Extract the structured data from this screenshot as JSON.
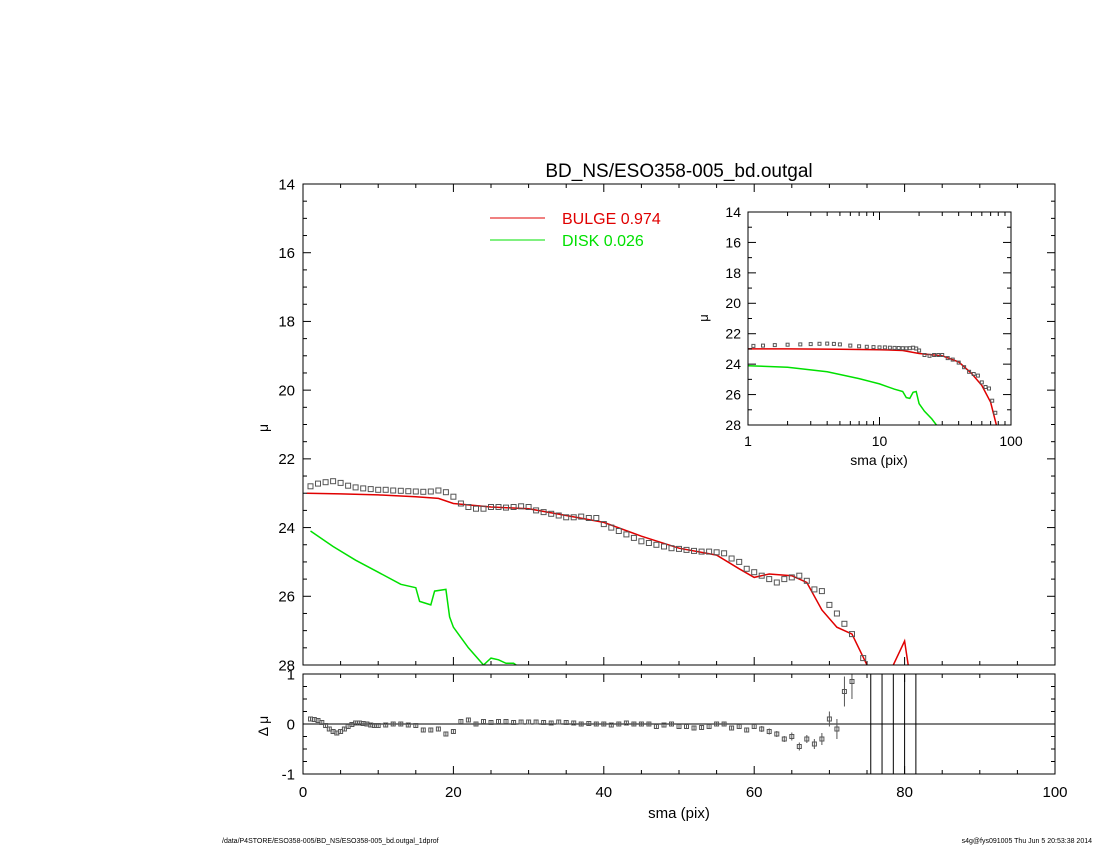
{
  "footer": {
    "path": "/data/P4STORE/ESO358-005/BD_NS/ESO358-005_bd.outgal_1dprof",
    "stamp": "s4g@fys091005  Thu Jun  5 20:53:38 2014"
  },
  "colors": {
    "bulge": "#e00000",
    "disk": "#00e000",
    "data": "#555555",
    "axis": "#000000"
  },
  "chart_data": [
    {
      "id": "main",
      "type": "line+scatter",
      "title": "BD_NS/ESO358-005_bd.outgal",
      "xlabel": "",
      "ylabel": "μ",
      "xlim": [
        0,
        100
      ],
      "ylim": [
        28,
        14
      ],
      "y_inverted": true,
      "xticks": [
        0,
        20,
        40,
        60,
        80,
        100
      ],
      "yticks": [
        14,
        16,
        18,
        20,
        22,
        24,
        26,
        28
      ],
      "legend": [
        {
          "label": "BULGE  0.974",
          "color": "#e00000"
        },
        {
          "label": "DISK  0.026",
          "color": "#00e000"
        }
      ],
      "legend_position": "top-center",
      "series": [
        {
          "name": "BULGE",
          "kind": "line",
          "x": [
            0.5,
            5,
            10,
            15,
            18,
            20,
            25,
            30,
            35,
            40,
            45,
            50,
            55,
            58,
            60,
            62,
            65,
            67,
            69,
            71,
            73,
            75,
            77,
            78.5,
            80,
            81.5
          ],
          "y": [
            23.0,
            23.02,
            23.05,
            23.1,
            23.15,
            23.3,
            23.4,
            23.45,
            23.65,
            23.85,
            24.25,
            24.6,
            24.8,
            25.2,
            25.45,
            25.35,
            25.4,
            25.6,
            26.4,
            26.9,
            27.1,
            28.0,
            29.5,
            28.0,
            27.3,
            29.5
          ]
        },
        {
          "name": "DISK",
          "kind": "line",
          "x": [
            1,
            4,
            7,
            10,
            13,
            15,
            15.5,
            17,
            17.5,
            19,
            19.5,
            20,
            22,
            24,
            25,
            26,
            27,
            28,
            29
          ],
          "y": [
            24.1,
            24.55,
            24.95,
            25.3,
            25.65,
            25.75,
            26.15,
            26.25,
            25.85,
            25.8,
            26.6,
            26.9,
            27.5,
            28.0,
            27.8,
            27.85,
            27.95,
            27.95,
            28.1
          ]
        },
        {
          "name": "data",
          "kind": "points",
          "x": [
            1,
            2,
            3,
            4,
            5,
            6,
            7,
            8,
            9,
            10,
            11,
            12,
            13,
            14,
            15,
            16,
            17,
            18,
            19,
            20,
            21,
            22,
            23,
            24,
            25,
            26,
            27,
            28,
            29,
            30,
            31,
            32,
            33,
            34,
            35,
            36,
            37,
            38,
            39,
            40,
            41,
            42,
            43,
            44,
            45,
            46,
            47,
            48,
            49,
            50,
            51,
            52,
            53,
            54,
            55,
            56,
            57,
            58,
            59,
            60,
            61,
            62,
            63,
            64,
            65,
            66,
            67,
            68,
            69,
            70,
            71,
            72,
            73,
            74.5,
            76,
            80
          ],
          "y": [
            22.8,
            22.72,
            22.68,
            22.65,
            22.7,
            22.78,
            22.83,
            22.86,
            22.88,
            22.9,
            22.9,
            22.92,
            22.93,
            22.94,
            22.95,
            22.96,
            22.95,
            22.92,
            22.97,
            23.1,
            23.3,
            23.4,
            23.45,
            23.45,
            23.4,
            23.4,
            23.42,
            23.4,
            23.38,
            23.4,
            23.5,
            23.55,
            23.6,
            23.65,
            23.7,
            23.7,
            23.68,
            23.72,
            23.72,
            23.9,
            24.0,
            24.1,
            24.2,
            24.3,
            24.4,
            24.45,
            24.5,
            24.55,
            24.6,
            24.62,
            24.65,
            24.68,
            24.7,
            24.7,
            24.72,
            24.75,
            24.9,
            25.0,
            25.2,
            25.3,
            25.4,
            25.5,
            25.6,
            25.5,
            25.45,
            25.4,
            25.55,
            25.8,
            25.85,
            26.25,
            26.5,
            26.8,
            27.1,
            27.8,
            28.2,
            29.0
          ]
        }
      ]
    },
    {
      "id": "inset",
      "type": "line+scatter",
      "title": "",
      "xlabel": "sma (pix)",
      "ylabel": "μ",
      "xscale": "log",
      "xlim": [
        1,
        100
      ],
      "ylim": [
        28,
        14
      ],
      "y_inverted": true,
      "xticks": [
        1,
        10,
        100
      ],
      "yticks": [
        14,
        16,
        18,
        20,
        22,
        24,
        26,
        28
      ],
      "series": [
        {
          "name": "BULGE",
          "kind": "line",
          "x": [
            1,
            2,
            5,
            10,
            15,
            20,
            30,
            40,
            50,
            60,
            70,
            80
          ],
          "y": [
            23.0,
            23.0,
            23.02,
            23.05,
            23.1,
            23.3,
            23.45,
            23.85,
            24.6,
            25.4,
            26.5,
            28.5
          ]
        },
        {
          "name": "DISK",
          "kind": "line",
          "x": [
            1,
            2,
            4,
            7,
            10,
            13,
            15,
            16,
            17,
            18,
            19,
            20,
            22,
            25,
            30
          ],
          "y": [
            24.1,
            24.2,
            24.5,
            24.95,
            25.3,
            25.65,
            25.8,
            26.2,
            26.25,
            25.85,
            25.8,
            26.6,
            27.1,
            27.6,
            28.5
          ]
        },
        {
          "name": "data",
          "kind": "points",
          "x": [
            1.1,
            1.3,
            1.6,
            2,
            2.5,
            3,
            3.5,
            4,
            4.5,
            5,
            6,
            7,
            8,
            9,
            10,
            11,
            12,
            13,
            14,
            15,
            16,
            17,
            18,
            19,
            20,
            22,
            24,
            26,
            28,
            30,
            33,
            36,
            40,
            44,
            48,
            52,
            56,
            60,
            64,
            68,
            72,
            76,
            80
          ],
          "y": [
            22.8,
            22.78,
            22.75,
            22.72,
            22.7,
            22.68,
            22.66,
            22.65,
            22.67,
            22.7,
            22.78,
            22.83,
            22.86,
            22.88,
            22.9,
            22.9,
            22.92,
            22.93,
            22.94,
            22.95,
            22.96,
            22.95,
            22.92,
            22.97,
            23.1,
            23.4,
            23.45,
            23.4,
            23.4,
            23.4,
            23.6,
            23.7,
            23.9,
            24.2,
            24.5,
            24.65,
            24.75,
            25.2,
            25.5,
            25.6,
            26.4,
            27.2,
            28.3
          ]
        }
      ]
    },
    {
      "id": "residuals",
      "type": "scatter",
      "title": "",
      "xlabel": "sma (pix)",
      "ylabel": "Δ μ",
      "xlim": [
        0,
        100
      ],
      "ylim": [
        -1,
        1
      ],
      "xticks": [
        0,
        20,
        40,
        60,
        80,
        100
      ],
      "yticks": [
        -1,
        0,
        1
      ],
      "zero_line": true,
      "series": [
        {
          "name": "residuals",
          "kind": "points",
          "x": [
            1,
            1.5,
            2,
            2.5,
            3,
            3.5,
            4,
            4.5,
            5,
            5.5,
            6,
            6.5,
            7,
            7.5,
            8,
            8.5,
            9,
            9.5,
            10,
            11,
            12,
            13,
            14,
            15,
            16,
            17,
            18,
            19,
            20,
            21,
            22,
            23,
            24,
            25,
            26,
            27,
            28,
            29,
            30,
            31,
            32,
            33,
            34,
            35,
            36,
            37,
            38,
            39,
            40,
            41,
            42,
            43,
            44,
            45,
            46,
            47,
            48,
            49,
            50,
            51,
            52,
            53,
            54,
            55,
            56,
            57,
            58,
            59,
            60,
            61,
            62,
            63,
            64,
            65,
            66,
            67,
            68,
            69,
            70,
            71,
            72,
            73
          ],
          "y": [
            0.1,
            0.09,
            0.07,
            0.03,
            -0.03,
            -0.1,
            -0.15,
            -0.18,
            -0.15,
            -0.1,
            -0.05,
            -0.01,
            0.02,
            0.02,
            0.01,
            0.0,
            -0.02,
            -0.03,
            -0.03,
            -0.02,
            0.0,
            0.0,
            -0.02,
            -0.03,
            -0.12,
            -0.12,
            -0.1,
            -0.2,
            -0.15,
            0.05,
            0.08,
            0.0,
            0.05,
            0.03,
            0.05,
            0.05,
            0.03,
            0.04,
            0.04,
            0.04,
            0.03,
            0.02,
            0.04,
            0.03,
            0.02,
            0.0,
            0.01,
            0.0,
            0.0,
            -0.02,
            0.0,
            0.02,
            0.0,
            0.0,
            0.0,
            -0.05,
            -0.02,
            0.0,
            -0.05,
            -0.05,
            -0.08,
            -0.07,
            -0.05,
            0.0,
            0.0,
            -0.08,
            -0.05,
            -0.12,
            -0.05,
            -0.1,
            -0.15,
            -0.2,
            -0.3,
            -0.25,
            -0.45,
            -0.3,
            -0.4,
            -0.3,
            0.1,
            -0.1,
            0.65,
            0.85
          ],
          "err": [
            0.03,
            0.03,
            0.03,
            0.03,
            0.03,
            0.03,
            0.03,
            0.03,
            0.03,
            0.03,
            0.03,
            0.03,
            0.03,
            0.03,
            0.03,
            0.03,
            0.03,
            0.03,
            0.03,
            0.03,
            0.03,
            0.03,
            0.03,
            0.03,
            0.03,
            0.03,
            0.03,
            0.03,
            0.04,
            0.04,
            0.04,
            0.04,
            0.04,
            0.04,
            0.04,
            0.04,
            0.04,
            0.04,
            0.04,
            0.04,
            0.04,
            0.04,
            0.04,
            0.04,
            0.04,
            0.04,
            0.04,
            0.04,
            0.04,
            0.04,
            0.04,
            0.05,
            0.05,
            0.05,
            0.05,
            0.05,
            0.05,
            0.05,
            0.05,
            0.05,
            0.05,
            0.05,
            0.05,
            0.05,
            0.05,
            0.05,
            0.05,
            0.05,
            0.05,
            0.06,
            0.06,
            0.06,
            0.06,
            0.08,
            0.08,
            0.08,
            0.1,
            0.12,
            0.15,
            0.2,
            0.3,
            0.35
          ]
        }
      ],
      "vertical_lines_x": [
        75.5,
        77,
        78.5,
        80,
        81.5
      ]
    }
  ]
}
